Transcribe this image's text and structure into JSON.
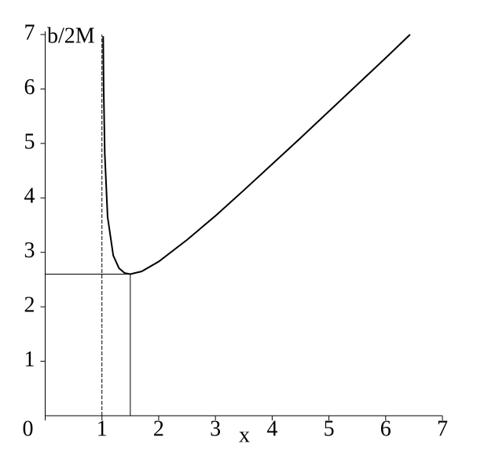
{
  "chart_data": {
    "type": "line",
    "xlabel": "x",
    "ylabel": "b/2M",
    "xlim": [
      0,
      7
    ],
    "ylim": [
      0,
      7
    ],
    "xticks": [
      0,
      1,
      2,
      3,
      4,
      5,
      6,
      7
    ],
    "yticks": [
      1,
      2,
      3,
      4,
      5,
      6,
      7
    ],
    "series": [
      {
        "color": "#000000",
        "x": [
          1.022,
          1.03,
          1.05,
          1.1,
          1.2,
          1.3,
          1.4,
          1.5,
          1.7,
          2.0,
          2.5,
          3.0,
          3.5,
          4.0,
          4.5,
          5.0,
          5.5,
          6.0,
          6.43
        ],
        "values": [
          6.97,
          6.04,
          4.81,
          3.65,
          2.94,
          2.71,
          2.62,
          2.6,
          2.65,
          2.83,
          3.23,
          3.67,
          4.14,
          4.62,
          5.1,
          5.59,
          6.08,
          6.57,
          7.0
        ]
      }
    ],
    "reference_lines": [
      {
        "x": [
          1,
          1
        ],
        "y": [
          0,
          7
        ],
        "dashed": true
      },
      {
        "x": [
          1.5,
          1.5
        ],
        "y": [
          0,
          2.6
        ],
        "dashed": false
      },
      {
        "x": [
          0,
          1.5
        ],
        "y": [
          2.6,
          2.6
        ],
        "dashed": false
      }
    ]
  }
}
